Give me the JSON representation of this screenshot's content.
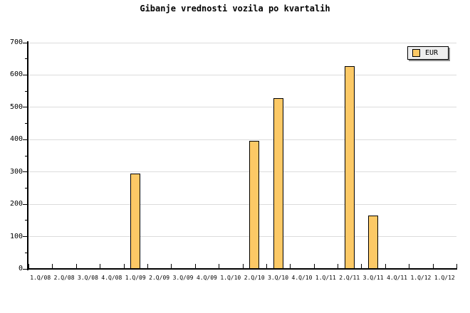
{
  "title": "Gibanje vrednosti vozila po kvartalih",
  "legend": {
    "label": "EUR"
  },
  "colors": {
    "bar_fill": "#fcc966",
    "bar_border": "#000000",
    "grid": "#dcdcdc",
    "axis": "#000000",
    "legend_bg": "#eeeeee",
    "legend_shadow": "#8c8c8c",
    "background": "#ffffff"
  },
  "chart_data": {
    "type": "bar",
    "title": "Gibanje vrednosti vozila po kvartalih",
    "categories": [
      "1.Q/08",
      "2.Q/08",
      "3.Q/08",
      "4.Q/08",
      "1.Q/09",
      "2.Q/09",
      "3.Q/09",
      "4.Q/09",
      "1.Q/10",
      "2.Q/10",
      "3.Q/10",
      "4.Q/10",
      "1.Q/11",
      "2.Q/11",
      "3.Q/11",
      "4.Q/11",
      "1.Q/12",
      "1.Q/12"
    ],
    "series": [
      {
        "name": "EUR",
        "values": [
          0,
          0,
          0,
          0,
          295,
          0,
          0,
          0,
          0,
          397,
          528,
          0,
          0,
          627,
          165,
          0,
          0,
          0
        ]
      }
    ],
    "xlabel": "",
    "ylabel": "",
    "ylim": [
      0,
      700
    ],
    "ytick_major": 100,
    "ytick_minor": 50,
    "grid": "horizontal-major",
    "legend_position": "top-right"
  }
}
